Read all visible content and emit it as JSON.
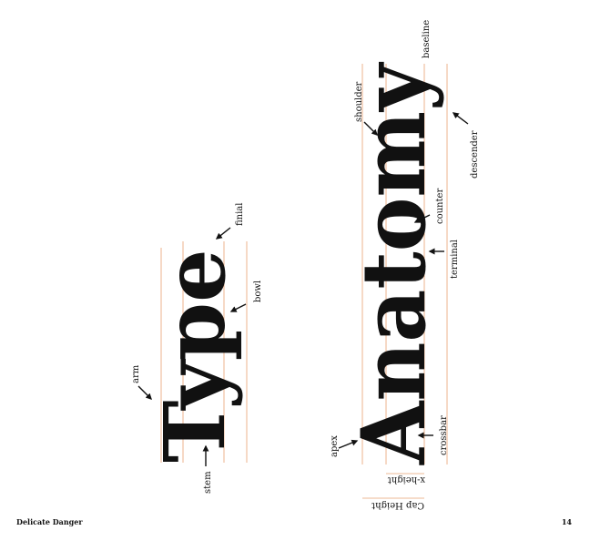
{
  "words": {
    "type": "Type",
    "anatomy": "Anatomy"
  },
  "labels": {
    "arm": "arm",
    "stem": "stem",
    "finial": "finial",
    "bowl": "bowl",
    "apex": "apex",
    "crossbar": "crossbar",
    "shoulder": "shoulder",
    "counter": "counter",
    "terminal": "terminal",
    "descender": "descender",
    "baseline": "baseline",
    "x_height": "x-height",
    "cap_height": "Cap Height"
  },
  "footer": {
    "title": "Delicate Danger",
    "page_number": "14"
  },
  "colors": {
    "guide_line": "#e8a070",
    "ink": "#111111"
  }
}
